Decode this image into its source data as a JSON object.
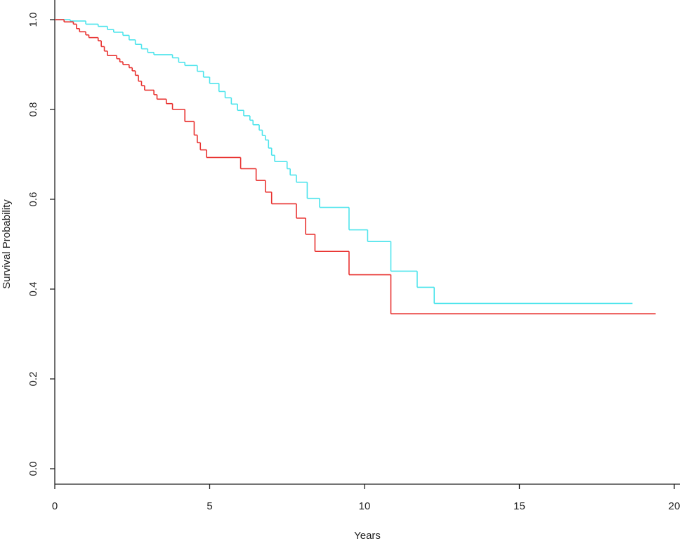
{
  "chart_data": {
    "type": "step",
    "x_label": "Years",
    "y_label": "Survival Probability",
    "series": [
      {
        "color": "#4de4ec",
        "x": [
          0,
          0.5,
          1.0,
          1.4,
          1.7,
          1.9,
          2.2,
          2.4,
          2.6,
          2.8,
          3.0,
          3.2,
          3.8,
          4.0,
          4.2,
          4.6,
          4.8,
          5.0,
          5.3,
          5.5,
          5.7,
          5.9,
          6.1,
          6.3,
          6.4,
          6.6,
          6.7,
          6.8,
          6.9,
          7.0,
          7.1,
          7.5,
          7.6,
          7.8,
          8.15,
          8.55,
          9.5,
          10.1,
          10.85,
          11.7,
          12.25,
          18.65
        ],
        "values": [
          1.0,
          0.997,
          0.99,
          0.985,
          0.978,
          0.972,
          0.965,
          0.955,
          0.945,
          0.935,
          0.927,
          0.922,
          0.915,
          0.905,
          0.898,
          0.885,
          0.872,
          0.858,
          0.84,
          0.826,
          0.812,
          0.798,
          0.786,
          0.776,
          0.766,
          0.754,
          0.742,
          0.732,
          0.714,
          0.698,
          0.684,
          0.668,
          0.654,
          0.638,
          0.602,
          0.582,
          0.532,
          0.506,
          0.44,
          0.404,
          0.368,
          0.368
        ]
      },
      {
        "color": "#e8312f",
        "x": [
          0,
          0.3,
          0.6,
          0.7,
          0.8,
          1.0,
          1.1,
          1.4,
          1.5,
          1.6,
          1.7,
          2.0,
          2.1,
          2.2,
          2.4,
          2.5,
          2.6,
          2.7,
          2.8,
          2.9,
          3.2,
          3.3,
          3.6,
          3.8,
          4.2,
          4.5,
          4.6,
          4.7,
          4.9,
          6.0,
          6.5,
          6.8,
          7.0,
          7.8,
          8.1,
          8.4,
          9.5,
          10.85,
          19.4
        ],
        "values": [
          1.0,
          0.995,
          0.99,
          0.98,
          0.973,
          0.966,
          0.96,
          0.953,
          0.94,
          0.93,
          0.92,
          0.913,
          0.906,
          0.9,
          0.893,
          0.886,
          0.876,
          0.863,
          0.853,
          0.843,
          0.833,
          0.823,
          0.813,
          0.8,
          0.773,
          0.743,
          0.726,
          0.71,
          0.693,
          0.668,
          0.642,
          0.616,
          0.59,
          0.558,
          0.522,
          0.484,
          0.432,
          0.345,
          0.345
        ]
      }
    ],
    "xlim": [
      0,
      20
    ],
    "xticks": [
      0,
      5,
      10,
      15,
      20
    ],
    "ylim": [
      0,
      1
    ],
    "yticks": [
      {
        "value": 0,
        "label": "0.0"
      },
      0.2,
      0.4,
      0.6,
      0.8,
      {
        "value": 1,
        "label": "1.0"
      }
    ]
  }
}
